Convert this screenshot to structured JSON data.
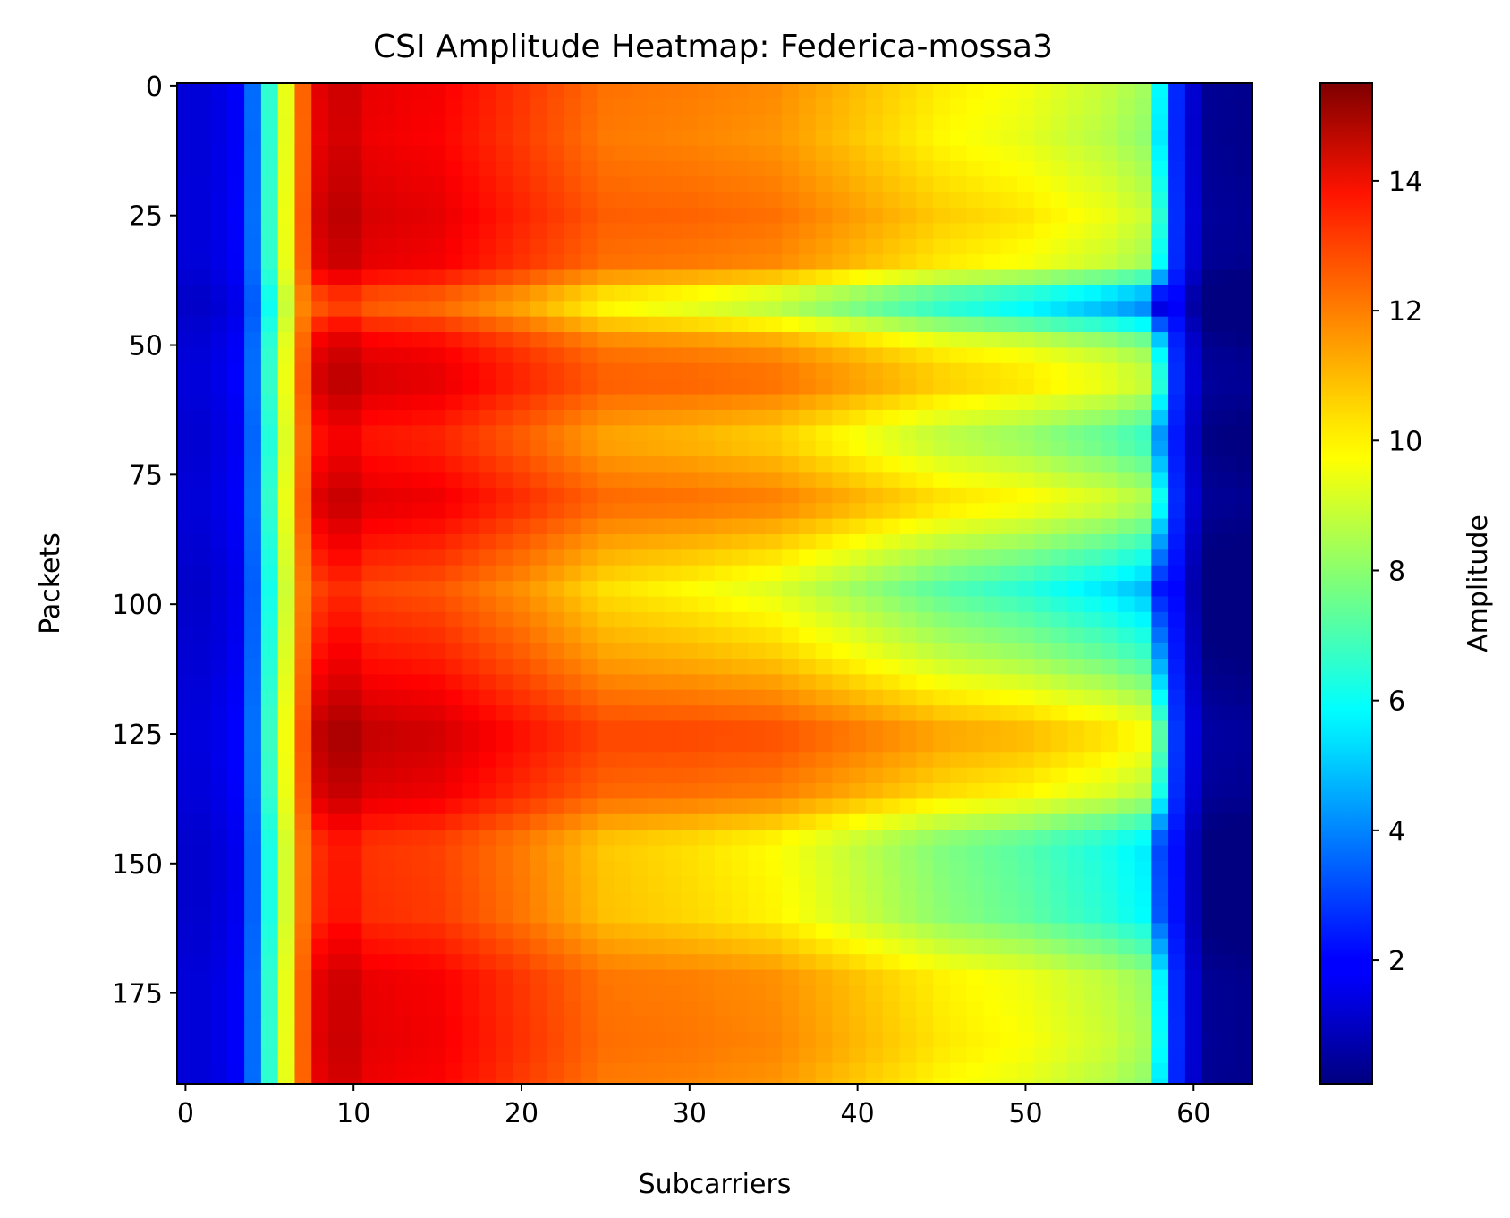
{
  "chart_data": {
    "type": "heatmap",
    "title": "CSI Amplitude Heatmap: Federica-mossa3",
    "xlabel": "Subcarriers",
    "ylabel": "Packets",
    "colorbar_label": "Amplitude",
    "colormap": "jet",
    "xlim": [
      -0.5,
      63.5
    ],
    "ylim": [
      192.5,
      -0.5
    ],
    "n_subcarriers": 64,
    "n_packets": 193,
    "value_range": [
      0.1,
      15.5
    ],
    "x_ticks": [
      0,
      10,
      20,
      30,
      40,
      50,
      60
    ],
    "y_ticks": [
      0,
      25,
      50,
      75,
      100,
      125,
      150,
      175
    ],
    "colorbar_ticks": [
      2,
      4,
      6,
      8,
      10,
      12,
      14
    ],
    "subcarrier_profile": [
      {
        "x": 0,
        "v": 1.4
      },
      {
        "x": 1,
        "v": 1.4
      },
      {
        "x": 2,
        "v": 1.6
      },
      {
        "x": 3,
        "v": 1.9
      },
      {
        "x": 4,
        "v": 3.6
      },
      {
        "x": 5,
        "v": 6.5
      },
      {
        "x": 6,
        "v": 9.3
      },
      {
        "x": 7,
        "v": 12.0
      },
      {
        "x": 8,
        "v": 13.7
      },
      {
        "x": 9,
        "v": 14.0
      },
      {
        "x": 10,
        "v": 14.0
      },
      {
        "x": 11,
        "v": 13.6
      },
      {
        "x": 15,
        "v": 13.4
      },
      {
        "x": 20,
        "v": 12.5
      },
      {
        "x": 25,
        "v": 11.5
      },
      {
        "x": 30,
        "v": 11.3
      },
      {
        "x": 35,
        "v": 11.0
      },
      {
        "x": 40,
        "v": 10.2
      },
      {
        "x": 45,
        "v": 9.4
      },
      {
        "x": 50,
        "v": 8.9
      },
      {
        "x": 55,
        "v": 8.1
      },
      {
        "x": 57,
        "v": 7.6
      },
      {
        "x": 58,
        "v": 5.1
      },
      {
        "x": 59,
        "v": 2.5
      },
      {
        "x": 60,
        "v": 1.2
      },
      {
        "x": 61,
        "v": 0.3
      },
      {
        "x": 63,
        "v": 0.2
      }
    ],
    "packet_profile": [
      {
        "p": 0,
        "g": 0.3
      },
      {
        "p": 10,
        "g": 0.2
      },
      {
        "p": 25,
        "g": 0.55
      },
      {
        "p": 35,
        "g": 0.3
      },
      {
        "p": 42,
        "g": -1.6
      },
      {
        "p": 50,
        "g": 0.2
      },
      {
        "p": 57,
        "g": 0.6
      },
      {
        "p": 68,
        "g": -0.4
      },
      {
        "p": 80,
        "g": 0.45
      },
      {
        "p": 97,
        "g": -1.1
      },
      {
        "p": 110,
        "g": -0.3
      },
      {
        "p": 125,
        "g": 0.9
      },
      {
        "p": 137,
        "g": 0.4
      },
      {
        "p": 146,
        "g": -0.8
      },
      {
        "p": 160,
        "g": -0.7
      },
      {
        "p": 172,
        "g": 0.25
      },
      {
        "p": 185,
        "g": 0.35
      },
      {
        "p": 192,
        "g": 0.2
      }
    ]
  }
}
